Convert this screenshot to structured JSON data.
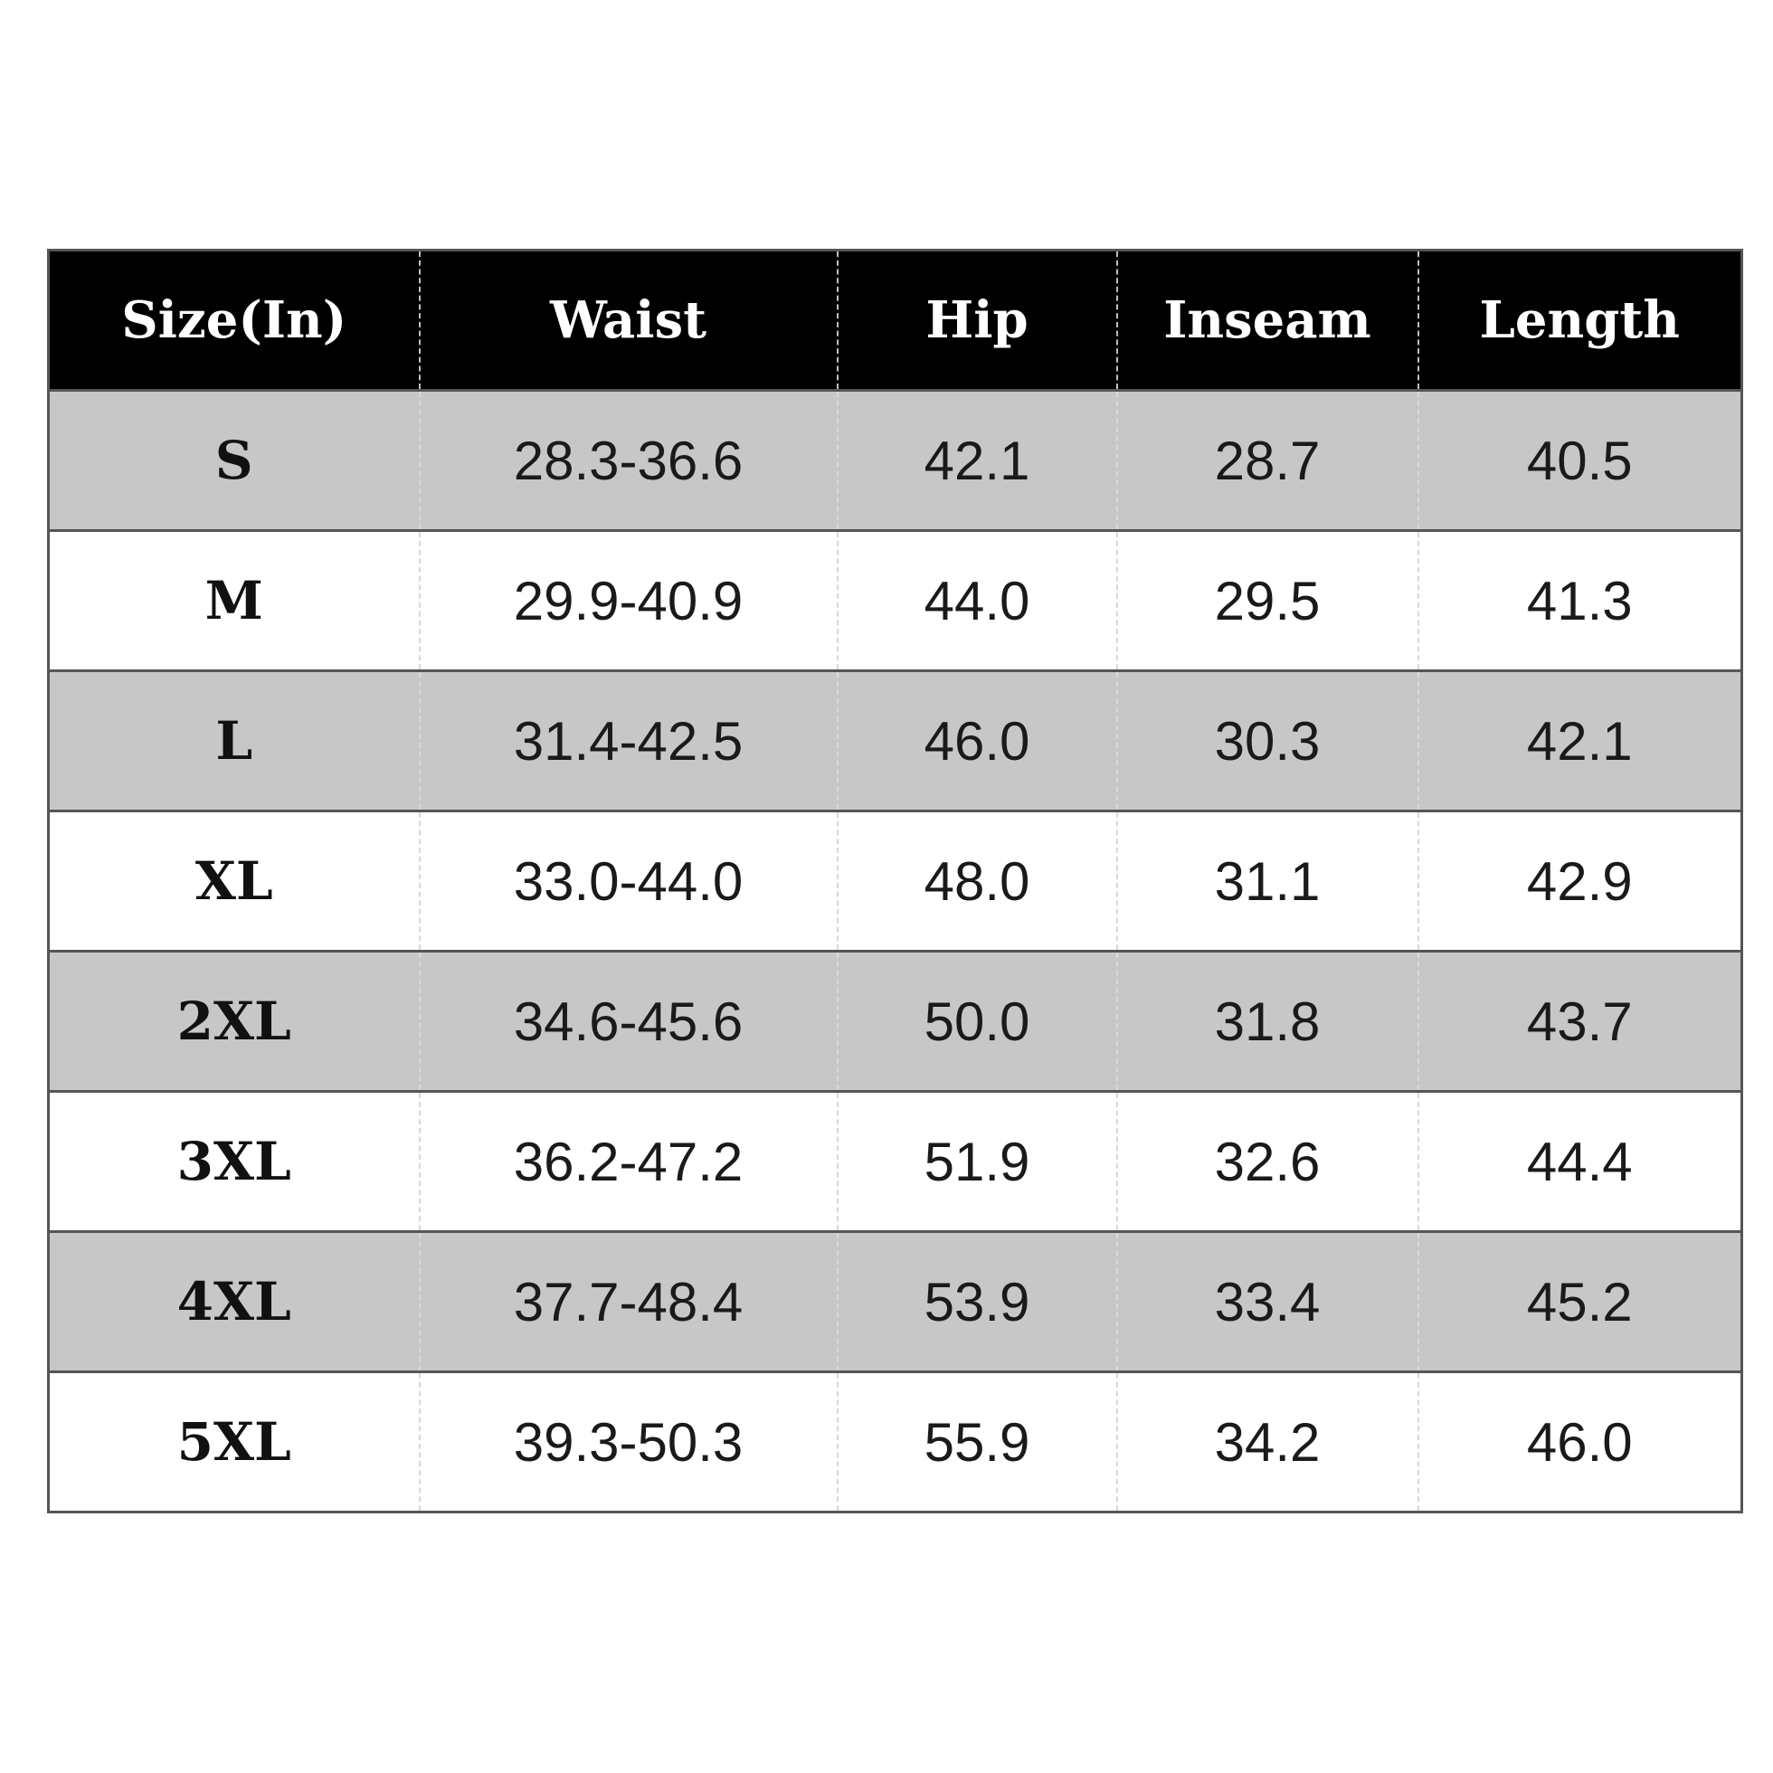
{
  "table": {
    "headers": [
      "Size(In)",
      "Waist",
      "Hip",
      "Inseam",
      "Length"
    ],
    "rows": [
      [
        "S",
        "28.3-36.6",
        "42.1",
        "28.7",
        "40.5"
      ],
      [
        "M",
        "29.9-40.9",
        "44.0",
        "29.5",
        "41.3"
      ],
      [
        "L",
        "31.4-42.5",
        "46.0",
        "30.3",
        "42.1"
      ],
      [
        "XL",
        "33.0-44.0",
        "48.0",
        "31.1",
        "42.9"
      ],
      [
        "2XL",
        "34.6-45.6",
        "50.0",
        "31.8",
        "43.7"
      ],
      [
        "3XL",
        "36.2-47.2",
        "51.9",
        "32.6",
        "44.4"
      ],
      [
        "4XL",
        "37.7-48.4",
        "53.9",
        "33.4",
        "45.2"
      ],
      [
        "5XL",
        "39.3-50.3",
        "55.9",
        "34.2",
        "46.0"
      ]
    ]
  },
  "colors": {
    "header_bg": "#000000",
    "header_text": "#ffffff",
    "shaded_row": "#c7c7c7",
    "plain_row": "#ffffff"
  }
}
